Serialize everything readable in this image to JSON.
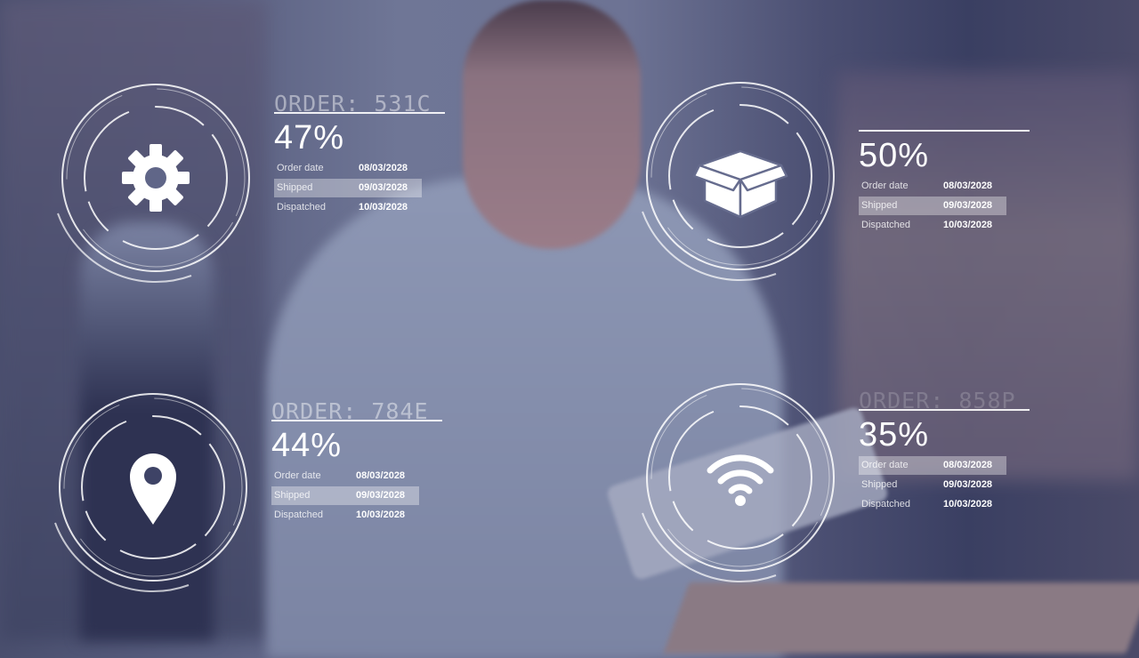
{
  "orders": [
    {
      "id": "gear",
      "header": "ORDER:  531C",
      "percent": "47%",
      "icon": "gear-icon",
      "highlight": 1,
      "rows": [
        {
          "label": "Order date",
          "value": "08/03/2028"
        },
        {
          "label": "Shipped",
          "value": "09/03/2028"
        },
        {
          "label": "Dispatched",
          "value": "10/03/2028"
        }
      ]
    },
    {
      "id": "box",
      "header": "",
      "percent": "50%",
      "icon": "box-icon",
      "highlight": 1,
      "rows": [
        {
          "label": "Order date",
          "value": "08/03/2028"
        },
        {
          "label": "Shipped",
          "value": "09/03/2028"
        },
        {
          "label": "Dispatched",
          "value": "10/03/2028"
        }
      ]
    },
    {
      "id": "pin",
      "header": "ORDER: 784E",
      "percent": "44%",
      "icon": "location-pin-icon",
      "highlight": 1,
      "rows": [
        {
          "label": "Order date",
          "value": "08/03/2028"
        },
        {
          "label": "Shipped",
          "value": "09/03/2028"
        },
        {
          "label": "Dispatched",
          "value": "10/03/2028"
        }
      ]
    },
    {
      "id": "wifi",
      "header": "ORDER:  858P",
      "percent": "35%",
      "icon": "wifi-icon",
      "highlight": 0,
      "rows": [
        {
          "label": "Order date",
          "value": "08/03/2028"
        },
        {
          "label": "Shipped",
          "value": "09/03/2028"
        },
        {
          "label": "Dispatched",
          "value": "10/03/2028"
        }
      ]
    }
  ]
}
